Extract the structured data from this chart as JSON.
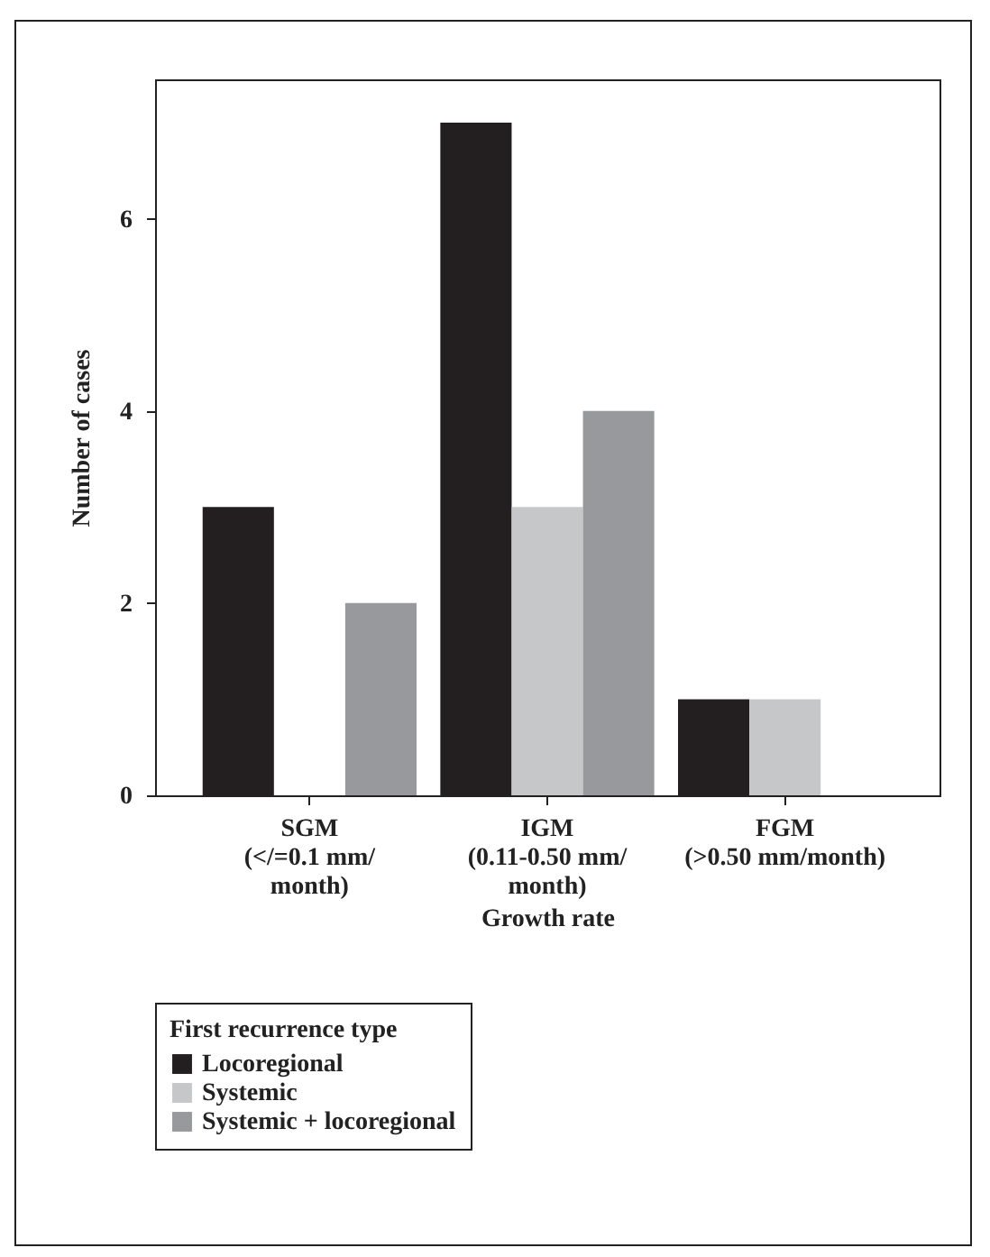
{
  "chart_data": {
    "type": "bar",
    "xlabel": "Growth rate",
    "ylabel": "Number of cases",
    "legend_title": "First recurrence type",
    "categories": [
      "SGM\n(</=0.1 mm/\nmonth)",
      "IGM\n(0.11-0.50 mm/\nmonth)",
      "FGM\n(>0.50 mm/month)"
    ],
    "series": [
      {
        "name": "Locoregional",
        "color": "#231f20",
        "values": [
          3,
          7,
          1
        ]
      },
      {
        "name": "Systemic",
        "color": "#c6c7c8",
        "values": [
          0,
          3,
          1
        ]
      },
      {
        "name": "Systemic + locoregional",
        "color": "#98999c",
        "values": [
          2,
          4,
          0
        ]
      }
    ],
    "ylim": [
      0,
      7.45
    ],
    "yticks": [
      0,
      2,
      4,
      6
    ],
    "legend": "bottom",
    "grid": false
  }
}
